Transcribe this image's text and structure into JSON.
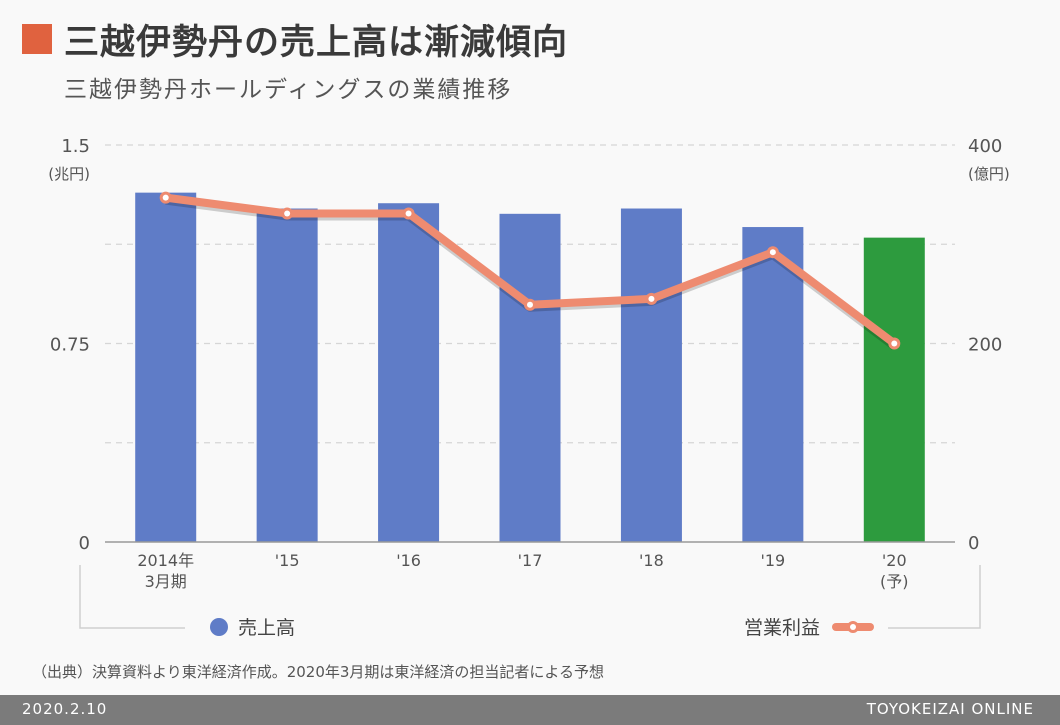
{
  "header": {
    "title": "三越伊勢丹の売上高は漸減傾向",
    "subtitle": "三越伊勢丹ホールディングスの業績推移"
  },
  "chart_data": {
    "type": "bar",
    "categories": [
      "2014年\n3月期",
      "'15",
      "'16",
      "'17",
      "'18",
      "'19",
      "'20\n(予)"
    ],
    "series": [
      {
        "name": "売上高",
        "kind": "bar",
        "axis": "left",
        "values": [
          1.32,
          1.26,
          1.28,
          1.24,
          1.26,
          1.19,
          1.15
        ],
        "colors": [
          "#5f7cc7",
          "#5f7cc7",
          "#5f7cc7",
          "#5f7cc7",
          "#5f7cc7",
          "#5f7cc7",
          "#2d9b3e"
        ]
      },
      {
        "name": "営業利益",
        "kind": "line",
        "axis": "right",
        "values": [
          347,
          331,
          331,
          239,
          245,
          292,
          200
        ],
        "color": "#ee8b70"
      }
    ],
    "left_axis": {
      "unit": "(兆円)",
      "ylim": [
        0,
        1.5
      ],
      "ticks": [
        "0",
        "0.75",
        "1.5"
      ]
    },
    "right_axis": {
      "unit": "(億円)",
      "ylim": [
        0,
        400
      ],
      "ticks": [
        "0",
        "200",
        "400"
      ]
    },
    "grid": true,
    "legend_placement": "bottom"
  },
  "footer": {
    "note": "（出典）決算資料より東洋経済作成。2020年3月期は東洋経済の担当記者による予想",
    "date": "2020.2.10",
    "brand": "TOYOKEIZAI ONLINE"
  }
}
